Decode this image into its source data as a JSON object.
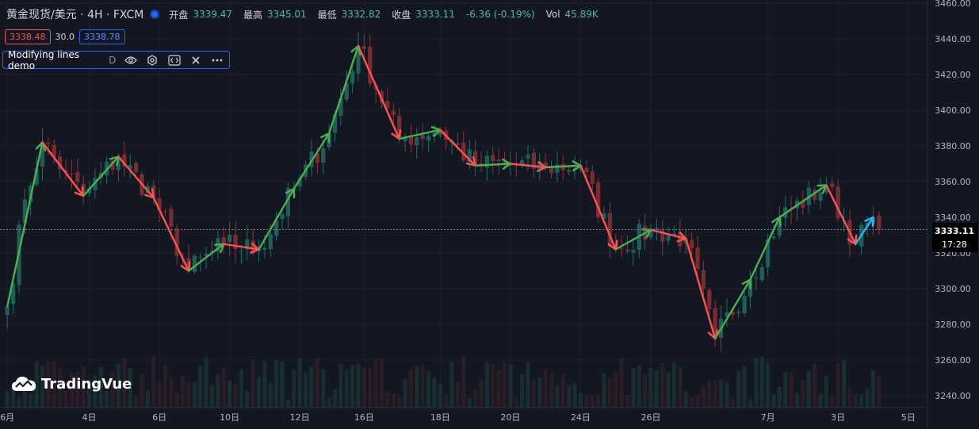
{
  "legend": {
    "symbol": "黄金现货/美元 · 4H · FXCM",
    "open_label": "开盘",
    "open": "3339.47",
    "high_label": "最高",
    "high": "3345.01",
    "low_label": "最低",
    "low": "3332.82",
    "close_label": "收盘",
    "close": "3333.11",
    "change": "-6.36 (-0.19%)",
    "vol_label": "Vol",
    "vol": "45.89K"
  },
  "chips": {
    "bid": "3338.48",
    "spread": "30.0",
    "ask": "3338.78"
  },
  "overlay": {
    "name": "Modifying lines demo",
    "suffix": "D"
  },
  "logo": {
    "text": "TradingVue"
  },
  "price_tag": {
    "price": "3333.11",
    "countdown": "17:28"
  },
  "colors": {
    "background": "#131722",
    "up": "#26a69a",
    "down": "#ef5350",
    "arrow_up": "#4caf50",
    "arrow_down": "#ff5252",
    "arrow_last": "#29b6f6",
    "accent": "#2962ff"
  },
  "chart_data": {
    "type": "candlestick",
    "ylim": [
      3238,
      3462
    ],
    "y_ticks": [
      "3240.00",
      "3260.00",
      "3280.00",
      "3300.00",
      "3320.00",
      "3340.00",
      "3360.00",
      "3380.00",
      "3400.00",
      "3420.00",
      "3440.00",
      "3460.00"
    ],
    "x_ticks": [
      {
        "i": 0,
        "label": "6月"
      },
      {
        "i": 14,
        "label": "4日"
      },
      {
        "i": 26,
        "label": "6日"
      },
      {
        "i": 38,
        "label": "10日"
      },
      {
        "i": 50,
        "label": "12日"
      },
      {
        "i": 61,
        "label": "16日"
      },
      {
        "i": 74,
        "label": "18日"
      },
      {
        "i": 86,
        "label": "20日"
      },
      {
        "i": 98,
        "label": "24日"
      },
      {
        "i": 110,
        "label": "26日"
      },
      {
        "i": 130,
        "label": "7月"
      },
      {
        "i": 142,
        "label": "3日"
      },
      {
        "i": 154,
        "label": "5日"
      }
    ],
    "x_count": 156,
    "close_anchors": [
      [
        0,
        3290
      ],
      [
        3,
        3350
      ],
      [
        6,
        3382
      ],
      [
        10,
        3365
      ],
      [
        13,
        3352
      ],
      [
        19,
        3374
      ],
      [
        25,
        3351
      ],
      [
        31,
        3310
      ],
      [
        37,
        3325
      ],
      [
        43,
        3322
      ],
      [
        49,
        3356
      ],
      [
        55,
        3387
      ],
      [
        60,
        3436
      ],
      [
        67,
        3384
      ],
      [
        74,
        3389
      ],
      [
        80,
        3369
      ],
      [
        86,
        3370
      ],
      [
        92,
        3368
      ],
      [
        98,
        3369
      ],
      [
        104,
        3322
      ],
      [
        110,
        3333
      ],
      [
        116,
        3328
      ],
      [
        121,
        3272
      ],
      [
        127,
        3305
      ],
      [
        132,
        3340
      ],
      [
        140,
        3358
      ],
      [
        145,
        3325
      ],
      [
        148,
        3340
      ],
      [
        149,
        3333
      ]
    ],
    "arrows": [
      {
        "from": [
          0,
          3290
        ],
        "to": [
          6,
          3382
        ]
      },
      {
        "from": [
          6,
          3382
        ],
        "to": [
          13,
          3352
        ]
      },
      {
        "from": [
          13,
          3352
        ],
        "to": [
          19,
          3374
        ]
      },
      {
        "from": [
          19,
          3374
        ],
        "to": [
          25,
          3351
        ]
      },
      {
        "from": [
          25,
          3351
        ],
        "to": [
          31,
          3310
        ]
      },
      {
        "from": [
          31,
          3310
        ],
        "to": [
          37,
          3325
        ]
      },
      {
        "from": [
          37,
          3325
        ],
        "to": [
          43,
          3322
        ]
      },
      {
        "from": [
          43,
          3322
        ],
        "to": [
          49,
          3356
        ]
      },
      {
        "from": [
          49,
          3356
        ],
        "to": [
          55,
          3387
        ]
      },
      {
        "from": [
          55,
          3387
        ],
        "to": [
          60,
          3436
        ]
      },
      {
        "from": [
          60,
          3436
        ],
        "to": [
          67,
          3384
        ]
      },
      {
        "from": [
          67,
          3384
        ],
        "to": [
          74,
          3389
        ]
      },
      {
        "from": [
          74,
          3389
        ],
        "to": [
          80,
          3369
        ]
      },
      {
        "from": [
          80,
          3369
        ],
        "to": [
          86,
          3370
        ]
      },
      {
        "from": [
          86,
          3370
        ],
        "to": [
          92,
          3368
        ]
      },
      {
        "from": [
          92,
          3368
        ],
        "to": [
          98,
          3369
        ]
      },
      {
        "from": [
          98,
          3369
        ],
        "to": [
          104,
          3322
        ]
      },
      {
        "from": [
          104,
          3322
        ],
        "to": [
          110,
          3333
        ]
      },
      {
        "from": [
          110,
          3333
        ],
        "to": [
          116,
          3328
        ]
      },
      {
        "from": [
          116,
          3328
        ],
        "to": [
          121,
          3272
        ]
      },
      {
        "from": [
          121,
          3272
        ],
        "to": [
          127,
          3305
        ]
      },
      {
        "from": [
          127,
          3305
        ],
        "to": [
          132,
          3340
        ]
      },
      {
        "from": [
          132,
          3340
        ],
        "to": [
          140,
          3358
        ]
      },
      {
        "from": [
          140,
          3358
        ],
        "to": [
          145,
          3325
        ]
      },
      {
        "from": [
          145,
          3325
        ],
        "to": [
          148,
          3340
        ],
        "last": true
      }
    ]
  }
}
